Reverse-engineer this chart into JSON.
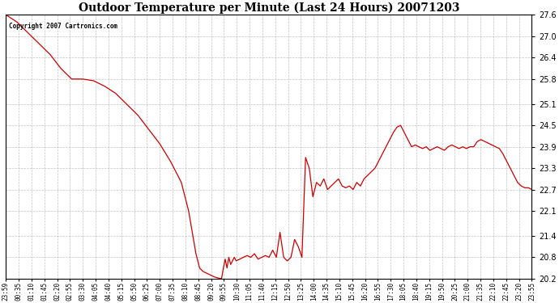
{
  "title": "Outdoor Temperature per Minute (Last 24 Hours) 20071203",
  "copyright_text": "Copyright 2007 Cartronics.com",
  "line_color": "#cc0000",
  "background_color": "#ffffff",
  "plot_bg_color": "#ffffff",
  "grid_color": "#aaaaaa",
  "ylim": [
    20.2,
    27.6
  ],
  "yticks": [
    20.2,
    20.8,
    21.4,
    22.1,
    22.7,
    23.3,
    23.9,
    24.5,
    25.1,
    25.8,
    26.4,
    27.0,
    27.6
  ],
  "x_labels": [
    "23:59",
    "00:35",
    "01:10",
    "01:45",
    "02:20",
    "02:55",
    "03:30",
    "04:05",
    "04:40",
    "05:15",
    "05:50",
    "06:25",
    "07:00",
    "07:35",
    "08:10",
    "08:45",
    "09:20",
    "09:55",
    "10:30",
    "11:05",
    "11:40",
    "12:15",
    "12:50",
    "13:25",
    "14:00",
    "14:35",
    "15:10",
    "15:45",
    "16:20",
    "16:55",
    "17:30",
    "18:05",
    "18:40",
    "19:15",
    "19:50",
    "20:25",
    "21:00",
    "21:35",
    "22:10",
    "22:45",
    "23:20",
    "23:55"
  ],
  "n_minutes": 1440,
  "key_points_x": [
    0,
    30,
    60,
    90,
    120,
    150,
    180,
    210,
    240,
    270,
    300,
    330,
    360,
    390,
    420,
    450,
    480,
    485,
    490,
    495,
    500,
    505,
    510,
    515,
    520,
    525,
    530,
    540,
    550,
    560,
    570,
    580,
    590,
    595,
    600,
    605,
    610,
    615,
    620,
    625,
    630,
    640,
    650,
    660,
    670,
    680,
    690,
    700,
    710,
    720,
    730,
    740,
    750,
    760,
    770,
    780,
    790,
    800,
    810,
    820,
    830,
    840,
    850,
    860,
    870,
    880,
    890,
    900,
    910,
    920,
    930,
    940,
    950,
    960,
    970,
    980,
    990,
    1000,
    1010,
    1020,
    1030,
    1040,
    1050,
    1060,
    1070,
    1080,
    1090,
    1100,
    1110,
    1120,
    1130,
    1140,
    1150,
    1160,
    1170,
    1180,
    1190,
    1200,
    1210,
    1220,
    1230,
    1240,
    1250,
    1260,
    1270,
    1280,
    1290,
    1300,
    1310,
    1320,
    1330,
    1340,
    1350,
    1360,
    1370,
    1380,
    1390,
    1400,
    1410,
    1420,
    1430,
    1439
  ],
  "key_points_y": [
    27.6,
    27.4,
    27.1,
    26.8,
    26.5,
    26.1,
    25.8,
    25.8,
    25.75,
    25.6,
    25.4,
    25.1,
    24.8,
    24.4,
    24.0,
    23.5,
    22.9,
    22.7,
    22.5,
    22.3,
    22.1,
    21.8,
    21.5,
    21.2,
    20.9,
    20.7,
    20.5,
    20.4,
    20.35,
    20.3,
    20.25,
    20.22,
    20.2,
    20.5,
    20.75,
    20.5,
    20.8,
    20.6,
    20.7,
    20.8,
    20.7,
    20.75,
    20.8,
    20.85,
    20.8,
    20.9,
    20.75,
    20.8,
    20.85,
    20.8,
    21.0,
    20.8,
    21.5,
    20.8,
    20.7,
    20.8,
    21.3,
    21.1,
    20.8,
    23.6,
    23.3,
    22.5,
    22.9,
    22.8,
    23.0,
    22.7,
    22.8,
    22.9,
    23.0,
    22.8,
    22.75,
    22.8,
    22.7,
    22.9,
    22.8,
    23.0,
    23.1,
    23.2,
    23.3,
    23.5,
    23.7,
    23.9,
    24.1,
    24.3,
    24.45,
    24.5,
    24.3,
    24.1,
    23.9,
    23.95,
    23.9,
    23.85,
    23.9,
    23.8,
    23.85,
    23.9,
    23.85,
    23.8,
    23.9,
    23.95,
    23.9,
    23.85,
    23.9,
    23.85,
    23.9,
    23.9,
    24.05,
    24.1,
    24.05,
    24.0,
    23.95,
    23.9,
    23.85,
    23.7,
    23.5,
    23.3,
    23.1,
    22.9,
    22.8,
    22.75,
    22.75,
    22.7
  ]
}
